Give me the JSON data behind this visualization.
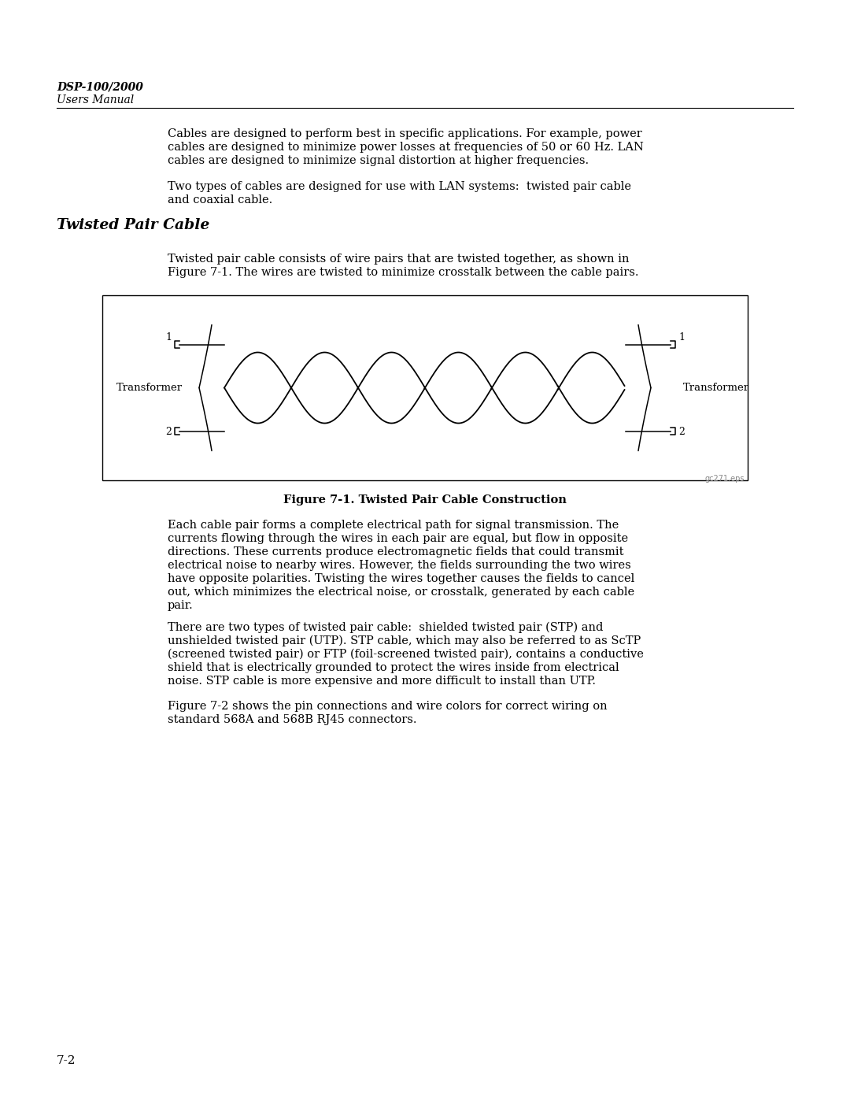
{
  "bg_color": "#ffffff",
  "header_bold": "DSP-100/2000",
  "header_normal": "Users Manual",
  "para1_line1": "Cables are designed to perform best in specific applications. For example, power",
  "para1_line2": "cables are designed to minimize power losses at frequencies of 50 or 60 Hz. LAN",
  "para1_line3": "cables are designed to minimize signal distortion at higher frequencies.",
  "para2_line1": "Two types of cables are designed for use with LAN systems:  twisted pair cable",
  "para2_line2": "and coaxial cable.",
  "section_title": "Twisted Pair Cable",
  "para3_line1": "Twisted pair cable consists of wire pairs that are twisted together, as shown in",
  "para3_line2": "Figure 7-1. The wires are twisted to minimize crosstalk between the cable pairs.",
  "fig_caption": "Figure 7-1. Twisted Pair Cable Construction",
  "fig_watermark": "gc271.eps",
  "para4_line1": "Each cable pair forms a complete electrical path for signal transmission. The",
  "para4_line2": "currents flowing through the wires in each pair are equal, but flow in opposite",
  "para4_line3": "directions. These currents produce electromagnetic fields that could transmit",
  "para4_line4": "electrical noise to nearby wires. However, the fields surrounding the two wires",
  "para4_line5": "have opposite polarities. Twisting the wires together causes the fields to cancel",
  "para4_line6": "out, which minimizes the electrical noise, or crosstalk, generated by each cable",
  "para4_line7": "pair.",
  "para5_line1": "There are two types of twisted pair cable:  shielded twisted pair (STP) and",
  "para5_line2": "unshielded twisted pair (UTP). STP cable, which may also be referred to as ScTP",
  "para5_line3": "(screened twisted pair) or FTP (foil-screened twisted pair), contains a conductive",
  "para5_line4": "shield that is electrically grounded to protect the wires inside from electrical",
  "para5_line5": "noise. STP cable is more expensive and more difficult to install than UTP.",
  "para6_line1": "Figure 7-2 shows the pin connections and wire colors for correct wiring on",
  "para6_line2": "standard 568A and 568B RJ45 connectors.",
  "page_number": "7-2",
  "text_color": "#000000",
  "text_fontsize": 10.5,
  "header_fontsize": 10.0,
  "section_fontsize": 13.5,
  "caption_fontsize": 10.5,
  "page_num_fontsize": 11.0
}
